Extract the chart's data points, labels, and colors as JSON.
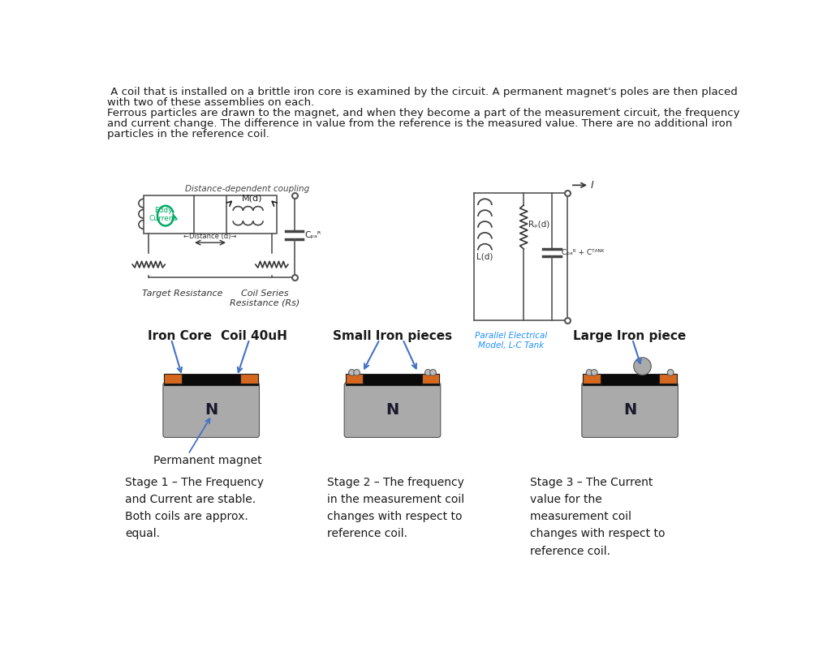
{
  "title_line1": " A coil that is installed on a brittle iron core is examined by the circuit. A permanent magnet's poles are then placed",
  "title_line2": "with two of these assemblies on each.",
  "title_line3": "Ferrous particles are drawn to the magnet, and when they become a part of the measurement circuit, the frequency",
  "title_line4": "and current change. The difference in value from the reference is the measured value. There are no additional iron",
  "title_line5": "particles in the reference coil.",
  "bg_color": "#ffffff",
  "text_color": "#1a1a1a",
  "orange_color": "#d4681e",
  "black_color": "#0a0a0a",
  "gray_color": "#aaaaaa",
  "blue_arrow_color": "#4472c4",
  "green_color": "#00aa66",
  "circuit_gray": "#555555",
  "stage1_text": "Stage 1 – The Frequency\nand Current are stable.\nBoth coils are approx.\nequal.",
  "stage2_text": "Stage 2 – The frequency\nin the measurement coil\nchanges with respect to\nreference coil.",
  "stage3_text": "Stage 3 – The Current\nvalue for the\nmeasurement coil\nchanges with respect to\nreference coil.",
  "iron_core_label": "Iron Core",
  "coil_label": "Coil 40uH",
  "small_iron_label": "Small Iron pieces",
  "large_iron_label": "Large Iron piece",
  "perm_magnet_label": "Permanent magnet",
  "circuit_label1": "Distance-dependent coupling",
  "eddy_label": "Eddy\nCurrent",
  "md_label": "M(d)",
  "cpar_label": "Cₚₐᴿ",
  "target_res_label": "Target Resistance",
  "coil_series_label": "Coil Series\nResistance (Rs)",
  "ld_label": "L(d)",
  "rpd_label": "Rₚ(d)",
  "cpar_ctank_label": "Cₚₐᴿ + Cᵀᴬᴺᴷ",
  "parallel_label": "Parallel Electrical\nModel, L-C Tank",
  "current_label": "I"
}
